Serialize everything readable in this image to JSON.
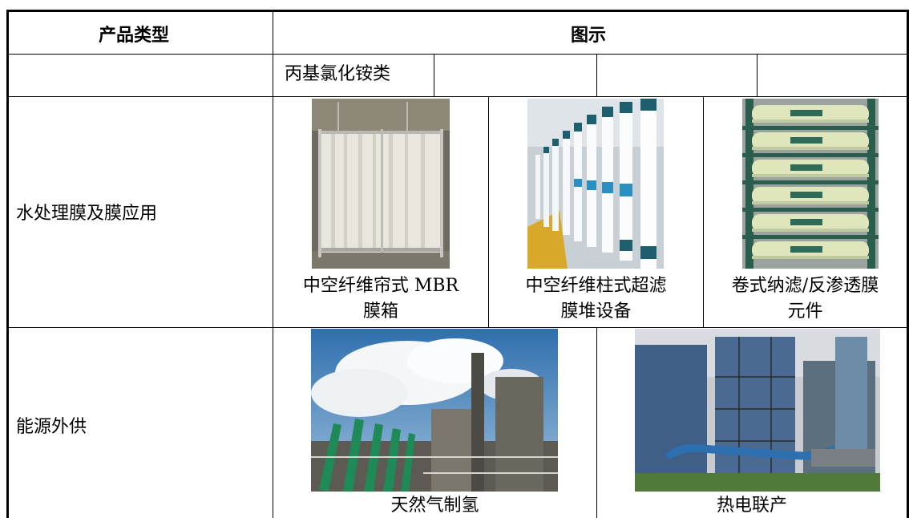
{
  "table": {
    "header": {
      "col1": "产品类型",
      "col2": "图示"
    },
    "row_chemical": {
      "label": "",
      "item": "丙基氯化铵类"
    },
    "row_membrane": {
      "label": "水处理膜及膜应用",
      "items": [
        {
          "line1": "中空纤维帘式 MBR",
          "line2": "膜箱",
          "icon": "mbr-membrane-box-photo"
        },
        {
          "line1": "中空纤维柱式超滤",
          "line2": "膜堆设备",
          "icon": "uf-membrane-stack-photo"
        },
        {
          "line1": "卷式纳滤/反渗透膜",
          "line2": "元件",
          "icon": "ro-membrane-element-photo"
        }
      ]
    },
    "row_energy": {
      "label": "能源外供",
      "items": [
        {
          "caption": "天然气制氢",
          "icon": "hydrogen-plant-photo"
        },
        {
          "caption": "热电联产",
          "icon": "cogeneration-plant-photo"
        }
      ]
    }
  }
}
